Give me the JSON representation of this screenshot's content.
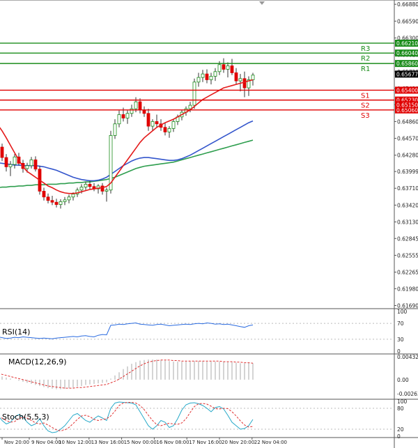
{
  "chart_data": {
    "type": "candlestick",
    "main": {
      "y_range": [
        0.6166,
        0.6693
      ],
      "y_ticks": [
        "0.66880",
        "0.66590",
        "0.66300",
        "0.66010",
        "0.65720",
        "0.65430",
        "0.65150",
        "0.64860",
        "0.64570",
        "0.64280",
        "0.63999",
        "0.63710",
        "0.63420",
        "0.63130",
        "0.62845",
        "0.62555",
        "0.62265",
        "0.61980",
        "0.61690"
      ],
      "levels": [
        {
          "name": "R3",
          "value": 0.6621,
          "label": "0.66210",
          "color": "#1a8c1a"
        },
        {
          "name": "R2",
          "value": 0.6604,
          "label": "0.66040",
          "color": "#1a8c1a"
        },
        {
          "name": "R1",
          "value": 0.6586,
          "label": "0.65860",
          "color": "#1a8c1a"
        },
        {
          "name": "S1",
          "value": 0.654,
          "label": "0.65400",
          "color": "#e00000"
        },
        {
          "name": "S2",
          "value": 0.6523,
          "label": "0.65230",
          "color": "#e00000"
        },
        {
          "name": "S3",
          "value": 0.6506,
          "label": "0.65060",
          "color": "#e00000"
        }
      ],
      "price_tags": [
        {
          "label": "0.65677",
          "value": 0.65677,
          "color": "#000000"
        },
        {
          "label": "0.65150",
          "value": 0.6515,
          "color": "#e00000"
        }
      ],
      "candles": [
        [
          0.645,
          0.6455,
          0.643,
          0.6442
        ],
        [
          0.6442,
          0.6448,
          0.6418,
          0.6424
        ],
        [
          0.6424,
          0.643,
          0.64,
          0.6408
        ],
        [
          0.6408,
          0.6418,
          0.6392,
          0.6412
        ],
        [
          0.6412,
          0.643,
          0.6405,
          0.6425
        ],
        [
          0.6425,
          0.6432,
          0.641,
          0.6414
        ],
        [
          0.6414,
          0.642,
          0.6398,
          0.6405
        ],
        [
          0.6405,
          0.6415,
          0.6398,
          0.641
        ],
        [
          0.641,
          0.6425,
          0.6405,
          0.642
        ],
        [
          0.642,
          0.6426,
          0.64,
          0.6404
        ],
        [
          0.6404,
          0.641,
          0.636,
          0.6366
        ],
        [
          0.6366,
          0.6372,
          0.635,
          0.6356
        ],
        [
          0.6356,
          0.6362,
          0.6345,
          0.635
        ],
        [
          0.635,
          0.6358,
          0.6342,
          0.6347
        ],
        [
          0.6347,
          0.6353,
          0.6338,
          0.6343
        ],
        [
          0.6343,
          0.6352,
          0.6336,
          0.6348
        ],
        [
          0.6348,
          0.6356,
          0.6342,
          0.6351
        ],
        [
          0.6351,
          0.636,
          0.6345,
          0.6356
        ],
        [
          0.6356,
          0.6364,
          0.635,
          0.6361
        ],
        [
          0.6361,
          0.6372,
          0.6356,
          0.6368
        ],
        [
          0.6368,
          0.6378,
          0.6362,
          0.6373
        ],
        [
          0.6373,
          0.6382,
          0.6368,
          0.6378
        ],
        [
          0.6378,
          0.6384,
          0.637,
          0.6374
        ],
        [
          0.6374,
          0.638,
          0.6366,
          0.637
        ],
        [
          0.637,
          0.6378,
          0.6362,
          0.6375
        ],
        [
          0.6375,
          0.638,
          0.636,
          0.6366
        ],
        [
          0.6366,
          0.6372,
          0.6348,
          0.6368
        ],
        [
          0.6368,
          0.647,
          0.6362,
          0.6462
        ],
        [
          0.6462,
          0.649,
          0.6456,
          0.6482
        ],
        [
          0.6482,
          0.6505,
          0.6476,
          0.6498
        ],
        [
          0.6498,
          0.651,
          0.6486,
          0.6492
        ],
        [
          0.6492,
          0.6505,
          0.6482,
          0.65
        ],
        [
          0.65,
          0.6515,
          0.6494,
          0.6508
        ],
        [
          0.6508,
          0.6528,
          0.6502,
          0.652
        ],
        [
          0.652,
          0.6526,
          0.65,
          0.6506
        ],
        [
          0.6506,
          0.6512,
          0.6494,
          0.65
        ],
        [
          0.65,
          0.6508,
          0.647,
          0.6478
        ],
        [
          0.6478,
          0.649,
          0.647,
          0.6486
        ],
        [
          0.6486,
          0.6498,
          0.6476,
          0.6482
        ],
        [
          0.6482,
          0.649,
          0.647,
          0.6476
        ],
        [
          0.6476,
          0.6484,
          0.6462,
          0.6468
        ],
        [
          0.6468,
          0.6478,
          0.6458,
          0.6474
        ],
        [
          0.6474,
          0.649,
          0.6468,
          0.6486
        ],
        [
          0.6486,
          0.6498,
          0.648,
          0.6494
        ],
        [
          0.6494,
          0.6506,
          0.6488,
          0.6502
        ],
        [
          0.6502,
          0.6512,
          0.6496,
          0.6508
        ],
        [
          0.6508,
          0.652,
          0.6502,
          0.6514
        ],
        [
          0.6514,
          0.656,
          0.6508,
          0.6554
        ],
        [
          0.6554,
          0.657,
          0.6546,
          0.6562
        ],
        [
          0.6562,
          0.6575,
          0.6554,
          0.6568
        ],
        [
          0.6568,
          0.6576,
          0.6552,
          0.6558
        ],
        [
          0.6558,
          0.657,
          0.655,
          0.6564
        ],
        [
          0.6564,
          0.6578,
          0.6556,
          0.6572
        ],
        [
          0.6572,
          0.659,
          0.6566,
          0.6584
        ],
        [
          0.6584,
          0.6595,
          0.657,
          0.6576
        ],
        [
          0.6576,
          0.6588,
          0.6562,
          0.6582
        ],
        [
          0.6582,
          0.6594,
          0.6566,
          0.657
        ],
        [
          0.657,
          0.6578,
          0.655,
          0.6556
        ],
        [
          0.6556,
          0.6568,
          0.6538,
          0.656
        ],
        [
          0.656,
          0.6572,
          0.6528,
          0.6544
        ],
        [
          0.6544,
          0.6564,
          0.653,
          0.6558
        ],
        [
          0.6558,
          0.657,
          0.6548,
          0.6566
        ]
      ],
      "ma_red": [
        0.648,
        0.647,
        0.6458,
        0.6445,
        0.6432,
        0.642,
        0.6408,
        0.64,
        0.6395,
        0.639,
        0.6385,
        0.638,
        0.6375,
        0.6372,
        0.6368,
        0.6365,
        0.6363,
        0.6362,
        0.6362,
        0.6363,
        0.6365,
        0.6367,
        0.6369,
        0.637,
        0.6371,
        0.6372,
        0.6374,
        0.638,
        0.639,
        0.64,
        0.641,
        0.642,
        0.643,
        0.644,
        0.645,
        0.6458,
        0.6464,
        0.647,
        0.6476,
        0.648,
        0.6484,
        0.6487,
        0.649,
        0.6494,
        0.6498,
        0.6502,
        0.6506,
        0.6512,
        0.6518,
        0.6524,
        0.6528,
        0.6532,
        0.6536,
        0.654,
        0.6544,
        0.6546,
        0.6548,
        0.655,
        0.6552,
        0.6554,
        0.6556,
        0.6558
      ],
      "ma_blue": [
        0.6415,
        0.6414,
        0.6413,
        0.6412,
        0.6411,
        0.6411,
        0.641,
        0.641,
        0.641,
        0.641,
        0.6409,
        0.6408,
        0.6406,
        0.6404,
        0.6402,
        0.6399,
        0.6396,
        0.6393,
        0.639,
        0.6388,
        0.6386,
        0.6385,
        0.6384,
        0.6384,
        0.6385,
        0.6387,
        0.639,
        0.6395,
        0.64,
        0.6405,
        0.641,
        0.6414,
        0.6418,
        0.6421,
        0.6423,
        0.6424,
        0.6424,
        0.6423,
        0.6422,
        0.6421,
        0.642,
        0.6419,
        0.6419,
        0.642,
        0.6422,
        0.6425,
        0.6428,
        0.6432,
        0.6436,
        0.644,
        0.6444,
        0.6448,
        0.6452,
        0.6456,
        0.646,
        0.6464,
        0.6468,
        0.6472,
        0.6476,
        0.648,
        0.6484,
        0.6487
      ],
      "ma_green": [
        0.6372,
        0.6373,
        0.6373,
        0.6374,
        0.6374,
        0.6375,
        0.6375,
        0.6376,
        0.6376,
        0.6377,
        0.6377,
        0.6377,
        0.6378,
        0.6378,
        0.6378,
        0.6379,
        0.6379,
        0.638,
        0.638,
        0.6381,
        0.6381,
        0.6382,
        0.6382,
        0.6383,
        0.6384,
        0.6385,
        0.6386,
        0.6388,
        0.639,
        0.6393,
        0.6396,
        0.6399,
        0.6402,
        0.6405,
        0.6407,
        0.6409,
        0.641,
        0.6411,
        0.6412,
        0.6413,
        0.6414,
        0.6415,
        0.6416,
        0.6418,
        0.642,
        0.6422,
        0.6424,
        0.6426,
        0.6428,
        0.643,
        0.6432,
        0.6434,
        0.6436,
        0.6438,
        0.644,
        0.6442,
        0.6444,
        0.6446,
        0.6448,
        0.645,
        0.6452,
        0.6454
      ]
    },
    "rsi": {
      "label": "RSI(14)",
      "range": [
        0,
        100
      ],
      "ticks": [
        "100",
        "70",
        "30",
        "0"
      ],
      "values": [
        36,
        34,
        32,
        33,
        35,
        34,
        36,
        35,
        34,
        33,
        32,
        33,
        32,
        31,
        33,
        34,
        35,
        36,
        37,
        36,
        38,
        39,
        37,
        36,
        40,
        42,
        41,
        65,
        66,
        68,
        67,
        69,
        70,
        71,
        68,
        67,
        66,
        65,
        67,
        68,
        66,
        64,
        65,
        66,
        67,
        68,
        67,
        69,
        70,
        69,
        71,
        70,
        68,
        69,
        67,
        68,
        66,
        64,
        62,
        60,
        64,
        66
      ]
    },
    "macd": {
      "label": "MACD(12,26,9)",
      "range": [
        -0.002639,
        0.004327
      ],
      "ticks": [
        "0.004327",
        "0.00",
        "-0.002639"
      ],
      "hist": [
        0.0008,
        0.0006,
        0.0004,
        0.0002,
        0.0,
        -0.0002,
        -0.0004,
        -0.0006,
        -0.0008,
        -0.001,
        -0.0012,
        -0.0014,
        -0.0016,
        -0.0017,
        -0.0018,
        -0.0018,
        -0.0017,
        -0.0016,
        -0.0015,
        -0.0013,
        -0.0012,
        -0.001,
        -0.0009,
        -0.0008,
        -0.0007,
        -0.0006,
        -0.0005,
        0.0002,
        0.0008,
        0.0014,
        0.002,
        0.0025,
        0.003,
        0.0033,
        0.0036,
        0.0037,
        0.0038,
        0.0038,
        0.0038,
        0.0037,
        0.0036,
        0.0035,
        0.0034,
        0.0034,
        0.0034,
        0.0034,
        0.0035,
        0.0035,
        0.0035,
        0.0035,
        0.0034,
        0.0034,
        0.0034,
        0.0034,
        0.0034,
        0.0033,
        0.0033,
        0.0032,
        0.0031,
        0.0031,
        0.0032,
        0.0031
      ],
      "signal": [
        0.0012,
        0.001,
        0.0008,
        0.0006,
        0.0004,
        0.0002,
        0.0,
        -0.0002,
        -0.0004,
        -0.0006,
        -0.0008,
        -0.001,
        -0.0012,
        -0.0013,
        -0.0014,
        -0.0015,
        -0.0016,
        -0.0016,
        -0.0016,
        -0.0015,
        -0.0015,
        -0.0014,
        -0.0013,
        -0.0012,
        -0.0011,
        -0.001,
        -0.0009,
        -0.0006,
        -0.0003,
        0.0001,
        0.0006,
        0.0011,
        0.0016,
        0.0021,
        0.0026,
        0.003,
        0.0033,
        0.0035,
        0.0036,
        0.0037,
        0.0037,
        0.0037,
        0.0036,
        0.0036,
        0.0035,
        0.0035,
        0.0035,
        0.0035,
        0.0035,
        0.0035,
        0.0035,
        0.0035,
        0.0035,
        0.0035,
        0.0034,
        0.0034,
        0.0034,
        0.0033,
        0.0033,
        0.0032,
        0.0032,
        0.0031
      ]
    },
    "stoch": {
      "label": "Stoch(5,5,3)",
      "range": [
        0,
        100
      ],
      "ticks": [
        "100",
        "80",
        "20",
        "0"
      ],
      "k": [
        60,
        45,
        35,
        40,
        55,
        62,
        55,
        40,
        30,
        35,
        50,
        30,
        15,
        10,
        12,
        20,
        30,
        45,
        60,
        65,
        55,
        45,
        40,
        50,
        58,
        52,
        45,
        80,
        95,
        98,
        97,
        96,
        95,
        90,
        70,
        50,
        30,
        20,
        30,
        45,
        40,
        25,
        30,
        50,
        75,
        90,
        95,
        96,
        93,
        88,
        80,
        70,
        82,
        85,
        78,
        60,
        40,
        30,
        20,
        22,
        30,
        48
      ],
      "d": [
        55,
        52,
        45,
        40,
        42,
        50,
        55,
        52,
        45,
        38,
        35,
        38,
        32,
        25,
        18,
        15,
        18,
        25,
        36,
        48,
        58,
        60,
        56,
        48,
        45,
        48,
        50,
        58,
        72,
        88,
        95,
        97,
        97,
        95,
        88,
        76,
        60,
        45,
        33,
        30,
        34,
        37,
        35,
        34,
        38,
        50,
        68,
        85,
        93,
        94,
        92,
        86,
        79,
        78,
        80,
        79,
        70,
        58,
        44,
        32,
        26,
        28
      ]
    },
    "x_ticks": [
      {
        "label": "Nov 20:00",
        "index": 0
      },
      {
        "label": "9 Nov 04:00",
        "index": 5
      },
      {
        "label": "10 Nov 12:00",
        "index": 10
      },
      {
        "label": "13 Nov 16:00",
        "index": 16
      },
      {
        "label": "15 Nov 00:00",
        "index": 22
      },
      {
        "label": "16 Nov 08:00",
        "index": 28
      },
      {
        "label": "17 Nov 16:00",
        "index": 34
      },
      {
        "label": "20 Nov 20:00",
        "index": 40
      },
      {
        "label": "22 Nov 04:00",
        "index": 46
      }
    ],
    "colors": {
      "bull": "#1a8c1a",
      "bear": "#e00000",
      "ma_red": "#e41a1a",
      "ma_blue": "#3355cc",
      "ma_green": "#2e9e4e",
      "rsi": "#2a6be0",
      "stoch_k": "#25a8c8",
      "stoch_d": "#e03030"
    }
  }
}
